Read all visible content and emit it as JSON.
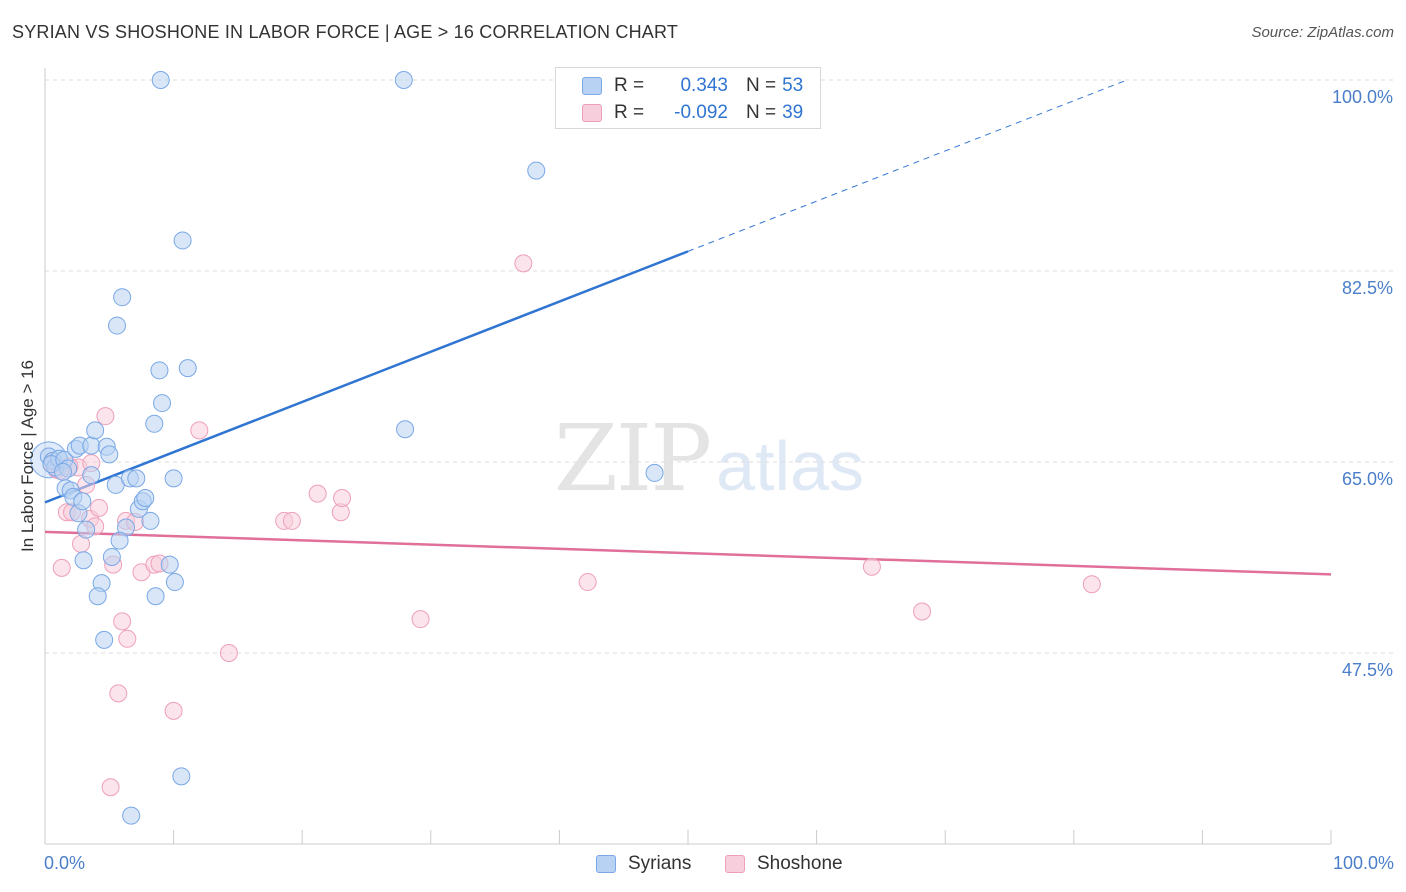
{
  "title": "SYRIAN VS SHOSHONE IN LABOR FORCE | AGE > 16 CORRELATION CHART",
  "source": "Source: ZipAtlas.com",
  "watermark": {
    "zip": "ZIP",
    "atlas": "atlas"
  },
  "colors": {
    "syrians": "#7aa8e6",
    "syrians_fill": "#b8d2f3",
    "syrians_line": "#2f75d1",
    "shoshone": "#ee9fb9",
    "shoshone_fill": "#f7cedb",
    "shoshone_line": "#e0709a",
    "grid": "#dddddd",
    "tick_text": "#4a7ec9"
  },
  "legend": {
    "rows": [
      {
        "r_label": "R =",
        "r_value": "0.343",
        "n_label": "N =",
        "n_value": "53"
      },
      {
        "r_label": "R =",
        "r_value": "-0.092",
        "n_label": "N =",
        "n_value": "39"
      }
    ]
  },
  "bottom_legend": [
    "Syrians",
    "Shoshone"
  ],
  "chart_data": {
    "type": "scatter",
    "title": "SYRIAN VS SHOSHONE IN LABOR FORCE | AGE > 16 CORRELATION CHART",
    "xlabel": "",
    "ylabel": "In Labor Force | Age > 16",
    "xlim": [
      0,
      100
    ],
    "ylim": [
      30,
      102
    ],
    "x_tick_labels": [
      "0.0%",
      "100.0%"
    ],
    "y_ticks": [
      47.5,
      65.0,
      82.5,
      100.0
    ],
    "y_tick_labels": [
      "47.5%",
      "65.0%",
      "82.5%",
      "100.0%"
    ],
    "grid": true,
    "legend_position": "top-center",
    "series": [
      {
        "name": "Syrians",
        "r": 0.343,
        "n": 53,
        "trend": {
          "x0": 0,
          "y0": 61.3,
          "x1": 50,
          "y1": 84.3,
          "dashed_to_x": 100,
          "dashed_to_y": 107.3
        },
        "points": [
          [
            0.3,
            65.5
          ],
          [
            0.6,
            65.1
          ],
          [
            0.8,
            64.5
          ],
          [
            1.1,
            65.3
          ],
          [
            0.5,
            64.8
          ],
          [
            1.5,
            65.2
          ],
          [
            1.8,
            64.4
          ],
          [
            1.4,
            64.1
          ],
          [
            1.6,
            62.6
          ],
          [
            2.0,
            62.4
          ],
          [
            2.2,
            61.8
          ],
          [
            2.6,
            60.3
          ],
          [
            2.9,
            61.4
          ],
          [
            3.2,
            58.8
          ],
          [
            2.4,
            66.2
          ],
          [
            2.7,
            66.5
          ],
          [
            3.6,
            66.5
          ],
          [
            3.9,
            67.9
          ],
          [
            4.8,
            66.4
          ],
          [
            5.0,
            65.7
          ],
          [
            5.5,
            62.9
          ],
          [
            6.3,
            59.0
          ],
          [
            5.8,
            57.8
          ],
          [
            5.2,
            56.3
          ],
          [
            3.0,
            56.0
          ],
          [
            4.4,
            53.9
          ],
          [
            4.1,
            52.7
          ],
          [
            4.6,
            48.7
          ],
          [
            7.3,
            60.7
          ],
          [
            7.6,
            61.4
          ],
          [
            7.8,
            61.7
          ],
          [
            8.6,
            52.7
          ],
          [
            10.1,
            54.0
          ],
          [
            8.2,
            59.6
          ],
          [
            6.6,
            63.5
          ],
          [
            7.1,
            63.5
          ],
          [
            10.0,
            63.5
          ],
          [
            9.7,
            55.6
          ],
          [
            8.5,
            68.5
          ],
          [
            9.1,
            70.4
          ],
          [
            8.9,
            73.4
          ],
          [
            11.1,
            73.6
          ],
          [
            5.6,
            77.5
          ],
          [
            6.0,
            80.1
          ],
          [
            10.7,
            85.3
          ],
          [
            9.0,
            100.0
          ],
          [
            27.9,
            100.0
          ],
          [
            38.2,
            91.7
          ],
          [
            10.6,
            36.2
          ],
          [
            6.7,
            32.6
          ],
          [
            28.0,
            68.0
          ],
          [
            47.4,
            64.0
          ],
          [
            3.6,
            63.8
          ]
        ]
      },
      {
        "name": "Shoshone",
        "r": -0.092,
        "n": 39,
        "trend": {
          "x0": 0,
          "y0": 58.6,
          "x1": 100,
          "y1": 54.7
        },
        "points": [
          [
            0.5,
            64.9
          ],
          [
            1.3,
            55.3
          ],
          [
            1.7,
            60.4
          ],
          [
            2.1,
            60.4
          ],
          [
            2.6,
            64.5
          ],
          [
            3.2,
            62.9
          ],
          [
            3.5,
            59.8
          ],
          [
            2.8,
            57.5
          ],
          [
            4.2,
            60.8
          ],
          [
            3.9,
            59.1
          ],
          [
            4.7,
            69.2
          ],
          [
            5.3,
            55.6
          ],
          [
            6.3,
            59.6
          ],
          [
            7.0,
            59.5
          ],
          [
            7.5,
            54.9
          ],
          [
            8.5,
            55.6
          ],
          [
            8.9,
            55.7
          ],
          [
            6.0,
            50.4
          ],
          [
            6.4,
            48.8
          ],
          [
            5.7,
            43.8
          ],
          [
            10.0,
            42.2
          ],
          [
            5.1,
            35.2
          ],
          [
            12.0,
            67.9
          ],
          [
            14.3,
            47.5
          ],
          [
            18.6,
            59.6
          ],
          [
            19.2,
            59.6
          ],
          [
            21.2,
            62.1
          ],
          [
            23.0,
            60.4
          ],
          [
            23.1,
            61.7
          ],
          [
            29.2,
            50.6
          ],
          [
            37.2,
            83.2
          ],
          [
            42.2,
            54.0
          ],
          [
            64.3,
            55.4
          ],
          [
            68.2,
            51.3
          ],
          [
            81.4,
            53.8
          ],
          [
            0.9,
            64.3
          ],
          [
            1.9,
            64.6
          ],
          [
            3.6,
            64.9
          ],
          [
            1.2,
            64.2
          ]
        ]
      }
    ]
  }
}
